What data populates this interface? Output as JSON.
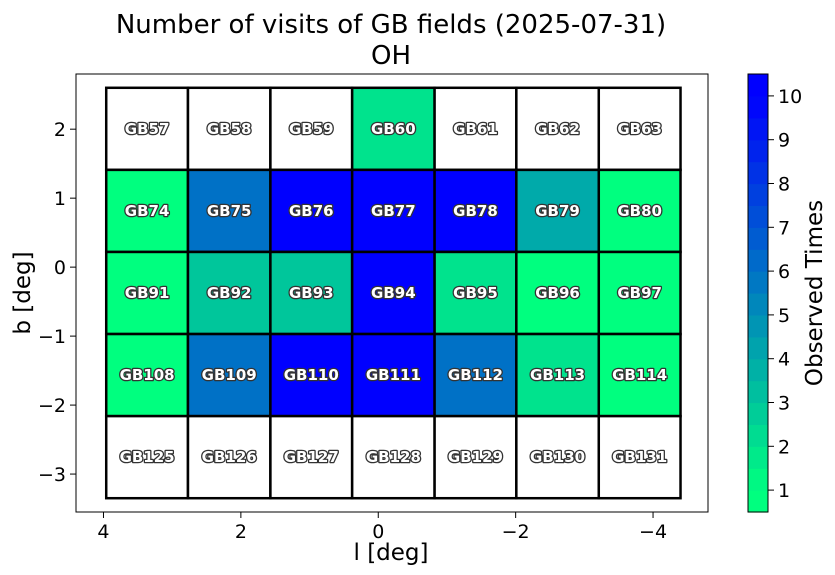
{
  "chart_data": {
    "type": "heatmap",
    "title": "Number of visits of GB fields (2025-07-31)",
    "subtitle": "OH",
    "xlabel": "l [deg]",
    "ylabel": "b [deg]",
    "xlim": [
      4.4,
      -4.8
    ],
    "ylim": [
      -3.55,
      2.8
    ],
    "xticks": [
      4,
      2,
      0,
      -2,
      -4
    ],
    "xtick_labels": [
      "4",
      "2",
      "0",
      "−2",
      "−4"
    ],
    "yticks": [
      2,
      1,
      0,
      -1,
      -2,
      -3
    ],
    "ytick_labels": [
      "2",
      "1",
      "0",
      "−1",
      "−2",
      "−3"
    ],
    "grid": false,
    "colorbar": {
      "label": "Observed Times",
      "range": [
        0.5,
        10.5
      ],
      "ticks": [
        1,
        2,
        3,
        4,
        5,
        6,
        7,
        8,
        9,
        10
      ],
      "tick_labels": [
        "1",
        "2",
        "3",
        "4",
        "5",
        "6",
        "7",
        "8",
        "9",
        "10"
      ],
      "color_low": "#00ff7f",
      "color_high": "#0000ff"
    },
    "field_grid": {
      "l_edges": [
        3.96,
        2.77,
        1.57,
        0.38,
        -0.82,
        -2.01,
        -3.21,
        -4.4
      ],
      "b_edges": [
        2.6,
        1.41,
        0.22,
        -0.97,
        -2.16,
        -3.35
      ]
    },
    "fields": [
      {
        "name": "GB57",
        "visits": 0
      },
      {
        "name": "GB58",
        "visits": 0
      },
      {
        "name": "GB59",
        "visits": 0
      },
      {
        "name": "GB60",
        "visits": 2
      },
      {
        "name": "GB61",
        "visits": 0
      },
      {
        "name": "GB62",
        "visits": 0
      },
      {
        "name": "GB63",
        "visits": 0
      },
      {
        "name": "GB74",
        "visits": 1
      },
      {
        "name": "GB75",
        "visits": 6
      },
      {
        "name": "GB76",
        "visits": 10
      },
      {
        "name": "GB77",
        "visits": 10
      },
      {
        "name": "GB78",
        "visits": 10
      },
      {
        "name": "GB79",
        "visits": 4
      },
      {
        "name": "GB80",
        "visits": 1
      },
      {
        "name": "GB91",
        "visits": 1
      },
      {
        "name": "GB92",
        "visits": 3
      },
      {
        "name": "GB93",
        "visits": 3
      },
      {
        "name": "GB94",
        "visits": 10
      },
      {
        "name": "GB95",
        "visits": 2
      },
      {
        "name": "GB96",
        "visits": 1
      },
      {
        "name": "GB97",
        "visits": 1
      },
      {
        "name": "GB108",
        "visits": 1
      },
      {
        "name": "GB109",
        "visits": 6
      },
      {
        "name": "GB110",
        "visits": 10
      },
      {
        "name": "GB111",
        "visits": 10
      },
      {
        "name": "GB112",
        "visits": 6
      },
      {
        "name": "GB113",
        "visits": 2
      },
      {
        "name": "GB114",
        "visits": 1
      },
      {
        "name": "GB125",
        "visits": 0
      },
      {
        "name": "GB126",
        "visits": 0
      },
      {
        "name": "GB127",
        "visits": 0
      },
      {
        "name": "GB128",
        "visits": 0
      },
      {
        "name": "GB129",
        "visits": 0
      },
      {
        "name": "GB130",
        "visits": 0
      },
      {
        "name": "GB131",
        "visits": 0
      }
    ]
  }
}
